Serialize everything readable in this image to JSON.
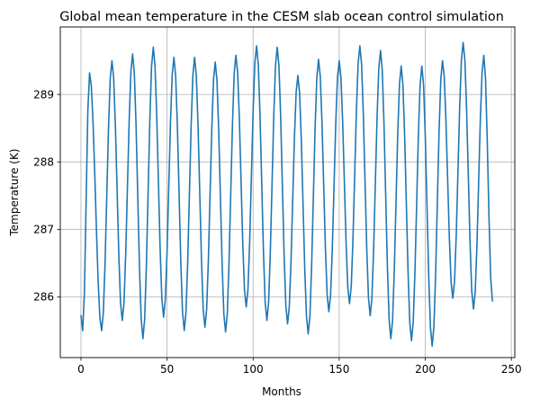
{
  "chart_data": {
    "type": "line",
    "title": "Global mean temperature in the CESM slab ocean control simulation",
    "xlabel": "Months",
    "ylabel": "Temperature (K)",
    "xlim": [
      -12,
      252
    ],
    "ylim": [
      285.1,
      290.0
    ],
    "xticks": [
      0,
      50,
      100,
      150,
      200,
      250
    ],
    "yticks": [
      286,
      287,
      288,
      289
    ],
    "grid": true,
    "colors": {
      "line": "#1f77b4",
      "grid": "#b0b0b0",
      "axes": "#000000"
    },
    "series": [
      {
        "peaks": [
          [
            5,
            289.32
          ],
          [
            18,
            289.5
          ],
          [
            30,
            289.6
          ],
          [
            42,
            289.7
          ],
          [
            54,
            289.55
          ],
          [
            66,
            289.55
          ],
          [
            78,
            289.48
          ],
          [
            90,
            289.58
          ],
          [
            102,
            289.72
          ],
          [
            114,
            289.7
          ],
          [
            126,
            289.28
          ],
          [
            138,
            289.52
          ],
          [
            150,
            289.5
          ],
          [
            162,
            289.72
          ],
          [
            174,
            289.65
          ],
          [
            186,
            289.42
          ],
          [
            198,
            289.42
          ],
          [
            210,
            289.5
          ],
          [
            222,
            289.77
          ],
          [
            234,
            289.58
          ]
        ],
        "troughs": [
          [
            1,
            285.5
          ],
          [
            12,
            285.5
          ],
          [
            24,
            285.65
          ],
          [
            36,
            285.38
          ],
          [
            48,
            285.7
          ],
          [
            60,
            285.5
          ],
          [
            72,
            285.55
          ],
          [
            84,
            285.48
          ],
          [
            96,
            285.85
          ],
          [
            108,
            285.65
          ],
          [
            120,
            285.6
          ],
          [
            132,
            285.45
          ],
          [
            144,
            285.78
          ],
          [
            156,
            285.9
          ],
          [
            168,
            285.72
          ],
          [
            180,
            285.38
          ],
          [
            192,
            285.35
          ],
          [
            204,
            285.27
          ],
          [
            216,
            285.98
          ],
          [
            228,
            285.82
          ]
        ],
        "start": [
          0,
          285.73
        ],
        "end": [
          239,
          285.93
        ]
      }
    ]
  }
}
